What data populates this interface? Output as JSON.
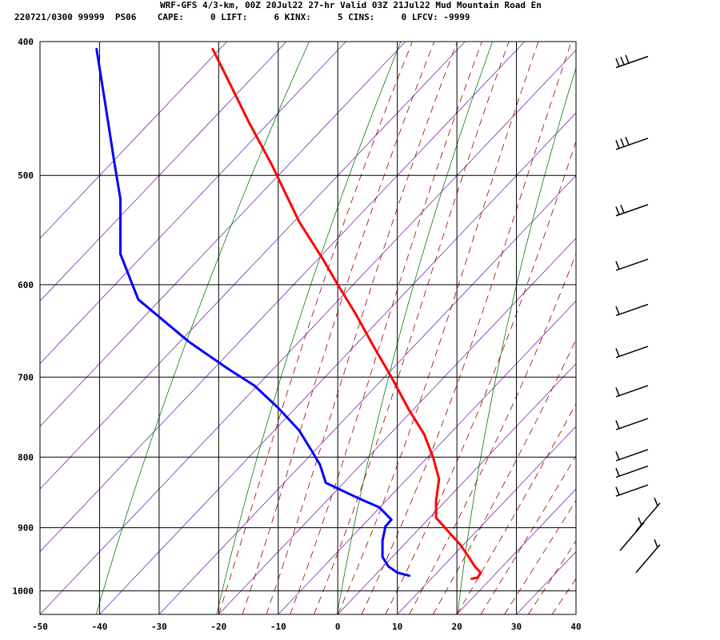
{
  "header": {
    "line1": "WRF-GFS 4/3-km, 00Z 20Jul22 27-hr Valid 03Z 21Jul22 Mud Mountain Road En",
    "line2": "220721/0300 99999  PS06    CAPE:     0 LIFT:     6 KINX:     5 CINS:     0 LFCV: -9999"
  },
  "chart_data": {
    "type": "line",
    "title": "WRF-GFS 4/3-km, 00Z 20Jul22 27-hr Valid 03Z 21Jul22 Mud Mountain Road En",
    "xlabel": "",
    "ylabel": "",
    "xlim": [
      -50,
      40
    ],
    "ylim": [
      1040,
      400
    ],
    "y_scale": "log-pressure",
    "x_ticks": [
      -50,
      -40,
      -30,
      -20,
      -10,
      0,
      10,
      20,
      30,
      40
    ],
    "y_ticks": [
      400,
      500,
      600,
      700,
      800,
      900,
      1000
    ],
    "grid": true,
    "colors": {
      "temperature": "#ff0000",
      "dewpoint": "#0000ff",
      "isotherm": "#7a2bb5",
      "dry_adiabat": "#008000",
      "moist_adiabat": "#a00000",
      "grid": "#000000"
    },
    "series": [
      {
        "points": [
          [
            -21.0,
            405
          ],
          [
            -18,
            430
          ],
          [
            -15,
            457
          ],
          [
            -11,
            492
          ],
          [
            -6.5,
            540
          ],
          [
            -2.5,
            575
          ],
          [
            0,
            600
          ],
          [
            3,
            630
          ],
          [
            6,
            665
          ],
          [
            9,
            700
          ],
          [
            12,
            740
          ],
          [
            14.5,
            770
          ],
          [
            16,
            800
          ],
          [
            17,
            830
          ],
          [
            16.5,
            860
          ],
          [
            16.5,
            885
          ],
          [
            18.5,
            905
          ],
          [
            20.5,
            925
          ],
          [
            22,
            945
          ],
          [
            23,
            960
          ],
          [
            24,
            970
          ],
          [
            23.5,
            978
          ],
          [
            22.5,
            980
          ]
        ]
      },
      {
        "points": [
          [
            -40.5,
            405
          ],
          [
            -39,
            445
          ],
          [
            -37.5,
            490
          ],
          [
            -36.5,
            520
          ],
          [
            -36.5,
            555
          ],
          [
            -36.5,
            570
          ],
          [
            -33.5,
            615
          ],
          [
            -25,
            660
          ],
          [
            -18.5,
            690
          ],
          [
            -14,
            710
          ],
          [
            -10,
            737
          ],
          [
            -6.5,
            765
          ],
          [
            -4.5,
            790
          ],
          [
            -3,
            810
          ],
          [
            -2,
            835
          ],
          [
            3,
            855
          ],
          [
            7,
            870
          ],
          [
            9,
            888
          ],
          [
            8,
            898
          ],
          [
            7.5,
            920
          ],
          [
            7.5,
            945
          ],
          [
            8.5,
            960
          ],
          [
            10,
            970
          ],
          [
            12,
            975
          ]
        ]
      }
    ],
    "wind_barbs": [
      {
        "p": 410,
        "barbs": 3
      },
      {
        "p": 470,
        "barbs": 3
      },
      {
        "p": 525,
        "barbs": 2
      },
      {
        "p": 575,
        "barbs": 1
      },
      {
        "p": 620,
        "barbs": 1
      },
      {
        "p": 665,
        "barbs": 1
      },
      {
        "p": 710,
        "barbs": 1
      },
      {
        "p": 750,
        "barbs": 1
      },
      {
        "p": 790,
        "barbs": 1
      },
      {
        "p": 812,
        "barbs": 1
      },
      {
        "p": 838,
        "barbs": 1
      },
      {
        "p": 905,
        "barbs": 1
      },
      {
        "p": 935,
        "barbs": 1
      },
      {
        "p": 970,
        "barbs": 1
      }
    ]
  }
}
